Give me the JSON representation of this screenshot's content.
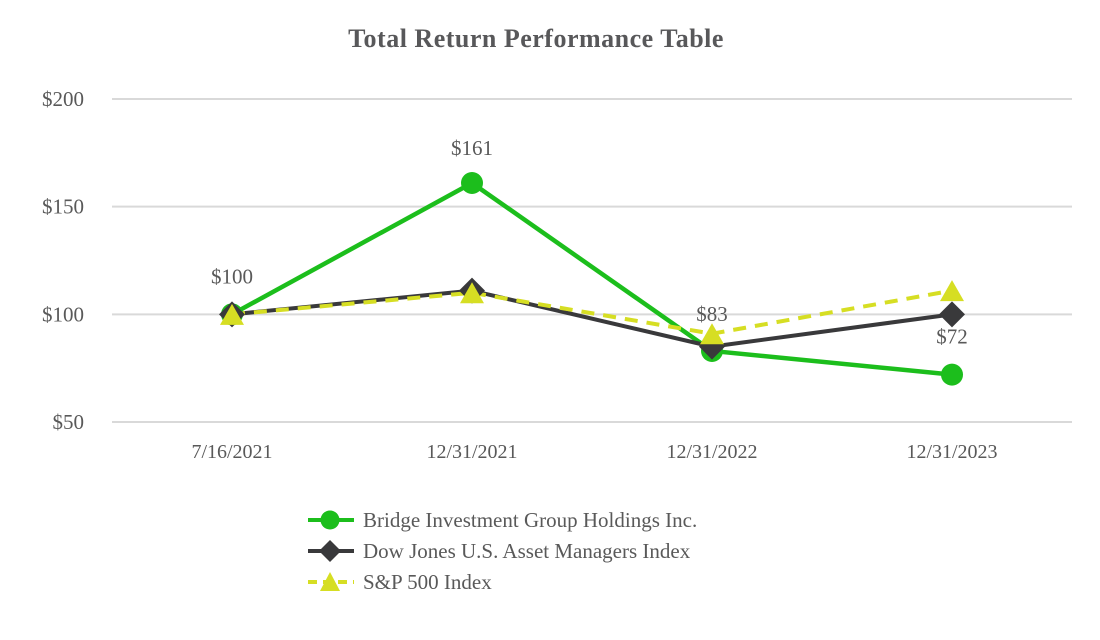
{
  "chart_data": {
    "type": "line",
    "title": "Total Return Performance Table",
    "categories": [
      "7/16/2021",
      "12/31/2021",
      "12/31/2022",
      "12/31/2023"
    ],
    "series": [
      {
        "name": "Bridge Investment Group Holdings Inc.",
        "color": "#1CBE1C",
        "marker": "circle",
        "line_style": "solid",
        "values": [
          100,
          161,
          83,
          72
        ]
      },
      {
        "name": "Dow Jones U.S. Asset Managers Index",
        "color": "#39393B",
        "marker": "diamond",
        "line_style": "solid",
        "values": [
          100,
          111,
          85,
          100
        ]
      },
      {
        "name": "S&P 500 Index",
        "color": "#D6DE23",
        "marker": "triangle",
        "line_style": "dashed",
        "values": [
          100,
          110,
          91,
          111
        ]
      }
    ],
    "point_labels": [
      {
        "text": "$100",
        "category_index": 0,
        "value": 100,
        "dy": -31
      },
      {
        "text": "$161",
        "category_index": 1,
        "value": 161,
        "dy": -28
      },
      {
        "text": "$83",
        "category_index": 2,
        "value": 83,
        "dy": -30
      },
      {
        "text": "$72",
        "category_index": 3,
        "value": 72,
        "dy": -31
      }
    ],
    "y_axis": {
      "tick_labels": [
        "$50",
        "$100",
        "$150",
        "$200"
      ],
      "tick_values": [
        50,
        100,
        150,
        200
      ],
      "min": 50,
      "max": 200
    },
    "xlabel": "",
    "ylabel": "",
    "grid": true,
    "legend_position": "bottom-left",
    "colors": {
      "grid": "#D9D9D9",
      "axis_text": "#595959",
      "label_text": "#595959",
      "title_text": "#58585A",
      "background": "#FFFFFF"
    }
  }
}
